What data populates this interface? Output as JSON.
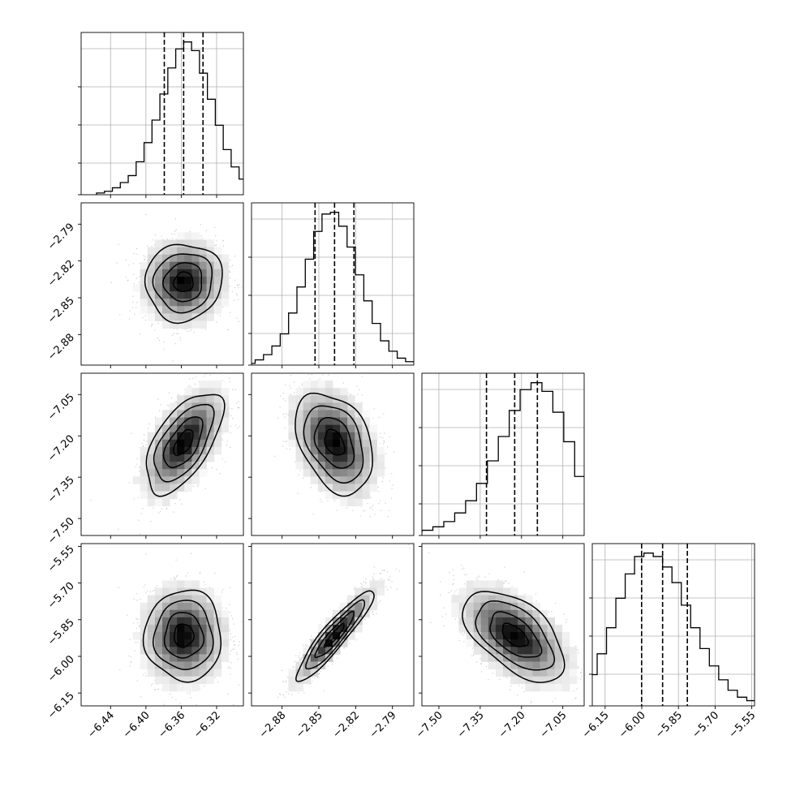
{
  "chart_data": {
    "type": "corner",
    "parameters": [
      {
        "range": [
          -6.4733,
          -6.2897
        ],
        "ticks": [
          "−6.44",
          "−6.40",
          "−6.36",
          "−6.32"
        ],
        "tick_values": [
          -6.44,
          -6.4,
          -6.36,
          -6.32
        ],
        "quantiles": [
          -6.3792,
          -6.3573,
          -6.3354
        ],
        "mean": -6.3573,
        "sd": 0.0219,
        "hist_counts": [
          0.01,
          0.02,
          0.04,
          0.07,
          0.11,
          0.19,
          0.3,
          0.43,
          0.58,
          0.73,
          0.84,
          0.88,
          0.83,
          0.7,
          0.55,
          0.4,
          0.26,
          0.16,
          0.09,
          0.05,
          0.03,
          0.01
        ]
      },
      {
        "range": [
          -2.9049,
          -2.7726
        ],
        "ticks": [
          "−2.88",
          "−2.85",
          "−2.82",
          "−2.79"
        ],
        "tick_values": [
          -2.88,
          -2.85,
          -2.82,
          -2.79
        ],
        "quantiles": [
          -2.8531,
          -2.8372,
          -2.8214
        ],
        "mean": -2.8372,
        "sd": 0.0159,
        "hist_counts": [
          0.01,
          0.03,
          0.06,
          0.11,
          0.18,
          0.3,
          0.45,
          0.61,
          0.77,
          0.87,
          0.88,
          0.8,
          0.68,
          0.52,
          0.37,
          0.24,
          0.14,
          0.08,
          0.04,
          0.02,
          0.01
        ]
      },
      {
        "range": [
          -7.5617,
          -6.9725
        ],
        "ticks": [
          "−7.50",
          "−7.35",
          "−7.20",
          "−7.05"
        ],
        "tick_values": [
          -7.5,
          -7.35,
          -7.2,
          -7.05
        ],
        "quantiles": [
          -7.3272,
          -7.2248,
          -7.1424
        ],
        "mean": -7.2248,
        "sd": 0.0924,
        "hist_counts": [
          0.01,
          0.02,
          0.03,
          0.05,
          0.08,
          0.13,
          0.2,
          0.3,
          0.43,
          0.57,
          0.72,
          0.84,
          0.88,
          0.83,
          0.71,
          0.54,
          0.34,
          0.17,
          0.07,
          0.03,
          0.01
        ]
      },
      {
        "range": [
          -6.2025,
          -5.5387
        ],
        "ticks": [
          "−6.15",
          "−6.00",
          "−5.85",
          "−5.70",
          "−5.55"
        ],
        "tick_values": [
          -6.15,
          -6.0,
          -5.85,
          -5.7,
          -5.55
        ],
        "quantiles": [
          -6.0007,
          -5.9148,
          -5.8136
        ],
        "mean": -5.9148,
        "sd": 0.0935,
        "hist_counts": [
          0.02,
          0.05,
          0.1,
          0.18,
          0.3,
          0.45,
          0.62,
          0.76,
          0.86,
          0.88,
          0.86,
          0.8,
          0.71,
          0.58,
          0.45,
          0.33,
          0.23,
          0.15,
          0.09,
          0.05,
          0.03,
          0.02
        ]
      }
    ],
    "correlations": [
      [
        1.0,
        0.05,
        0.6,
        0.0
      ],
      [
        0.05,
        1.0,
        -0.35,
        0.92
      ],
      [
        0.6,
        -0.35,
        1.0,
        -0.55
      ],
      [
        0.0,
        0.92,
        -0.55,
        1.0
      ]
    ],
    "contour_levels": [
      0.12,
      0.39,
      0.68,
      0.86
    ],
    "grid": true,
    "colors": {
      "scatter": "#9a9a9a",
      "line": "#000000",
      "grid": "#b0b0b0"
    }
  }
}
